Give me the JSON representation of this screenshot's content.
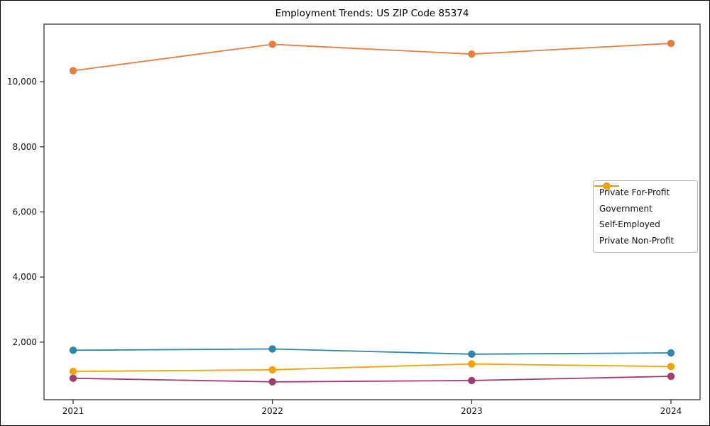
{
  "figure": {
    "background": "#ffffff",
    "border_color": "#000000"
  },
  "chart_data": {
    "type": "line",
    "title": "Employment Trends: US ZIP Code 85374",
    "x": [
      2021,
      2022,
      2023,
      2024
    ],
    "x_labels": [
      "2021",
      "2022",
      "2023",
      "2024"
    ],
    "series": [
      {
        "name": "Private For-Profit",
        "color": "#e87d3e",
        "values": [
          10340,
          11150,
          10850,
          11180
        ]
      },
      {
        "name": "Government",
        "color": "#2e86ab",
        "values": [
          1750,
          1790,
          1630,
          1670
        ]
      },
      {
        "name": "Self-Employed",
        "color": "#a23b72",
        "values": [
          890,
          780,
          820,
          950
        ]
      },
      {
        "name": "Private Non-Profit",
        "color": "#f5a100",
        "values": [
          1100,
          1150,
          1330,
          1250
        ]
      }
    ],
    "ylim": [
      230,
      11770
    ],
    "yticks": [
      2000,
      4000,
      6000,
      8000,
      10000
    ],
    "ytick_labels": [
      "2,000",
      "4,000",
      "6,000",
      "8,000",
      "10,000"
    ],
    "xlabel": "",
    "ylabel": "",
    "grid": false,
    "marker": "circle",
    "legend": {
      "position": "right-middle",
      "items": [
        "Private For-Profit",
        "Government",
        "Self-Employed",
        "Private Non-Profit"
      ]
    }
  }
}
